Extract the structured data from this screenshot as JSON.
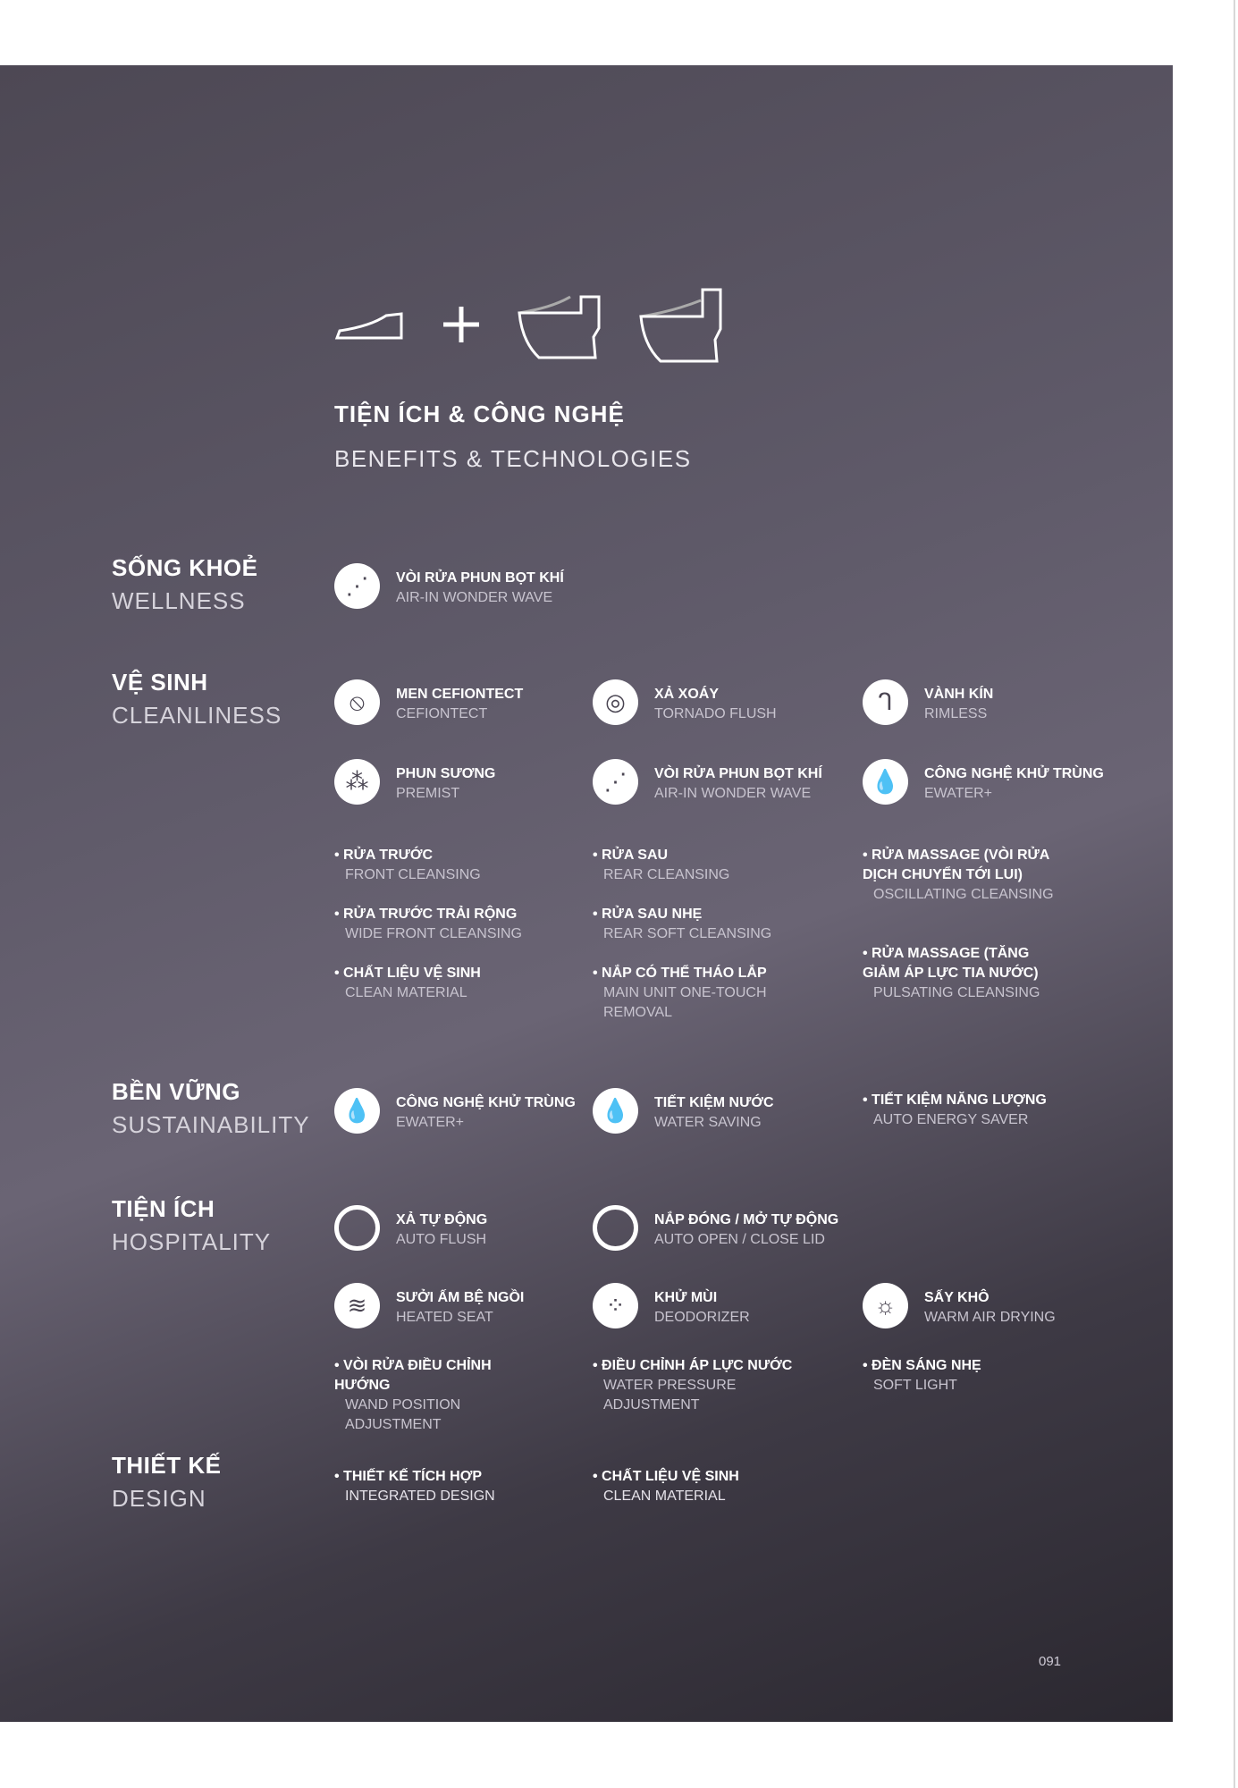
{
  "header": {
    "title": "TIỆN ÍCH & CÔNG NGHỆ",
    "subtitle": "BENEFITS & TECHNOLOGIES",
    "icons": [
      "washlet-seat-icon",
      "plus-icon",
      "one-piece-toilet-icon",
      "toilet-with-tank-icon"
    ]
  },
  "sections": [
    {
      "vi": "SỐNG KHOẺ",
      "en": "WELLNESS",
      "features": [
        {
          "vi": "VÒI RỬA PHUN BỌT KHÍ",
          "en": "AIR-IN WONDER WAVE",
          "icon": "air-in-wonder-wave-icon"
        }
      ],
      "bullets": []
    },
    {
      "vi": "VỆ SINH",
      "en": "CLEANLINESS",
      "features": [
        {
          "vi": "MEN CEFIONTECT",
          "en": "CEFIONTECT",
          "icon": "cefiontect-icon"
        },
        {
          "vi": "XẢ XOÁY",
          "en": "TORNADO FLUSH",
          "icon": "tornado-flush-icon"
        },
        {
          "vi": "VÀNH KÍN",
          "en": "RIMLESS",
          "icon": "rimless-icon"
        },
        {
          "vi": "PHUN SƯƠNG",
          "en": "PREMIST",
          "icon": "premist-icon"
        },
        {
          "vi": "VÒI RỬA PHUN BỌT KHÍ",
          "en": "AIR-IN WONDER WAVE",
          "icon": "air-in-wonder-wave-icon"
        },
        {
          "vi": "CÔNG NGHỆ KHỬ TRÙNG",
          "en": "EWATER+",
          "icon": "ewater-drop-icon"
        }
      ],
      "bullets": [
        {
          "vi": "RỬA TRƯỚC",
          "en": "FRONT CLEANSING"
        },
        {
          "vi": "RỬA TRƯỚC TRẢI RỘNG",
          "en": "WIDE FRONT CLEANSING"
        },
        {
          "vi": "CHẤT LIỆU VỆ SINH",
          "en": "CLEAN MATERIAL"
        },
        {
          "vi": "RỬA SAU",
          "en": "REAR CLEANSING"
        },
        {
          "vi": "RỬA SAU NHẸ",
          "en": "REAR SOFT CLEANSING"
        },
        {
          "vi": "NẮP CÓ THỂ THÁO LẮP",
          "en": "MAIN UNIT ONE-TOUCH REMOVAL"
        },
        {
          "vi": "RỬA MASSAGE (VÒI RỬA DỊCH CHUYỂN TỚI LUI)",
          "en": "OSCILLATING CLEANSING"
        },
        {
          "vi": "RỬA MASSAGE (TĂNG GIẢM ÁP LỰC TIA NƯỚC)",
          "en": "PULSATING CLEANSING"
        }
      ]
    },
    {
      "vi": "BỀN VỮNG",
      "en": "SUSTAINABILITY",
      "features": [
        {
          "vi": "CÔNG NGHỆ KHỬ TRÙNG",
          "en": "EWATER+",
          "icon": "ewater-drop-icon"
        },
        {
          "vi": "TIẾT KIỆM NƯỚC",
          "en": "WATER SAVING",
          "icon": "water-drop-icon"
        }
      ],
      "bullets": [
        {
          "vi": "TIẾT KIỆM NĂNG LƯỢNG",
          "en": "AUTO ENERGY SAVER"
        }
      ]
    },
    {
      "vi": "TIỆN ÍCH",
      "en": "HOSPITALITY",
      "features": [
        {
          "vi": "XẢ TỰ ĐỘNG",
          "en": "AUTO FLUSH",
          "icon": "auto-flush-icon"
        },
        {
          "vi": "NẮP ĐÓNG / MỞ TỰ ĐỘNG",
          "en": "AUTO OPEN / CLOSE LID",
          "icon": "auto-lid-icon"
        },
        {
          "vi": "SƯỞI ẤM BỆ NGỒI",
          "en": "HEATED SEAT",
          "icon": "heated-seat-icon"
        },
        {
          "vi": "KHỬ MÙI",
          "en": "DEODORIZER",
          "icon": "deodorizer-icon"
        },
        {
          "vi": "SẤY KHÔ",
          "en": "WARM AIR DRYING",
          "icon": "warm-air-drying-icon"
        }
      ],
      "bullets": [
        {
          "vi": "VÒI RỬA ĐIỀU CHỈNH HƯỚNG",
          "en": "WAND POSITION ADJUSTMENT"
        },
        {
          "vi": "ĐIỀU CHỈNH ÁP LỰC NƯỚC",
          "en": "WATER PRESSURE ADJUSTMENT"
        },
        {
          "vi": "ĐÈN SÁNG NHẸ",
          "en": "SOFT LIGHT"
        }
      ]
    },
    {
      "vi": "THIẾT KẾ",
      "en": "DESIGN",
      "features": [],
      "bullets": [
        {
          "vi": "THIẾT KẾ TÍCH HỢP",
          "en": "INTEGRATED DESIGN"
        },
        {
          "vi": "CHẤT LIỆU VỆ SINH",
          "en": "CLEAN MATERIAL"
        }
      ]
    }
  ],
  "page_number": "091"
}
